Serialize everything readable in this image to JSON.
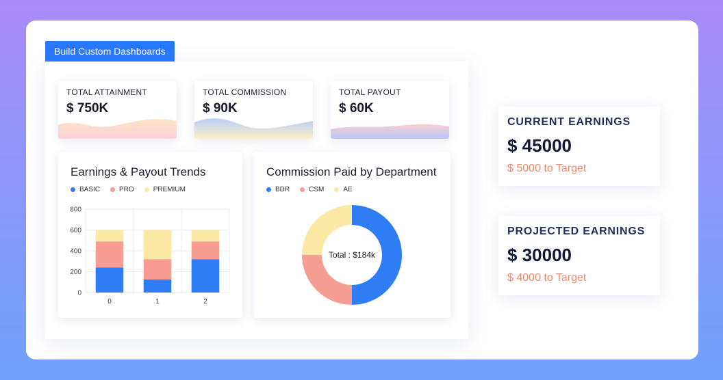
{
  "tag": {
    "label": "Build Custom Dashboards"
  },
  "kpis": [
    {
      "label": "TOTAL ATTAINMENT",
      "value": "$ 750K",
      "colors": [
        "#fde3c6",
        "#fbd1d6"
      ]
    },
    {
      "label": "TOTAL COMMISSION",
      "value": "$ 90K",
      "colors": [
        "#b9cdfa",
        "#fdf0c7"
      ]
    },
    {
      "label": "TOTAL PAYOUT",
      "value": "$ 60K",
      "colors": [
        "#fbcdd1",
        "#b7c8f8"
      ]
    }
  ],
  "trends": {
    "title": "Earnings & Payout Trends",
    "legend": [
      {
        "label": "BASIC",
        "color": "#2e7df5"
      },
      {
        "label": "PRO",
        "color": "#f89d93"
      },
      {
        "label": "PREMIUM",
        "color": "#fde9a6"
      }
    ]
  },
  "commission": {
    "title": "Commission Paid by Department",
    "legend": [
      {
        "label": "BDR",
        "color": "#2e7df5"
      },
      {
        "label": "CSM",
        "color": "#f89d93"
      },
      {
        "label": "AE",
        "color": "#fde9a6"
      }
    ],
    "center_label": "Total : $184k"
  },
  "earnings": {
    "current": {
      "title": "CURRENT EARNINGS",
      "value": "$ 45000",
      "target": "$ 5000 to Target"
    },
    "projected": {
      "title": "PROJECTED EARNINGS",
      "value": "$ 30000",
      "target": "$ 4000 to Target"
    }
  },
  "chart_data": [
    {
      "type": "bar",
      "stacked": true,
      "title": "Earnings & Payout Trends",
      "categories": [
        "0",
        "1",
        "2"
      ],
      "series": [
        {
          "name": "BASIC",
          "values": [
            240,
            125,
            320
          ],
          "color": "#2e7df5"
        },
        {
          "name": "PRO",
          "values": [
            250,
            195,
            170
          ],
          "color": "#f89d93"
        },
        {
          "name": "PREMIUM",
          "values": [
            110,
            280,
            110
          ],
          "color": "#fde9a6"
        }
      ],
      "ylim": [
        0,
        800
      ],
      "yticks": [
        0,
        200,
        400,
        600,
        800
      ],
      "grid": true,
      "legend": "top-left"
    },
    {
      "type": "pie",
      "donut": true,
      "title": "Commission Paid by Department",
      "labels": [
        "BDR",
        "CSM",
        "AE"
      ],
      "values": [
        50,
        25,
        25
      ],
      "colors": [
        "#2e7df5",
        "#f89d93",
        "#fde9a6"
      ],
      "center_text": "Total : $184k",
      "legend": "top-left"
    }
  ]
}
